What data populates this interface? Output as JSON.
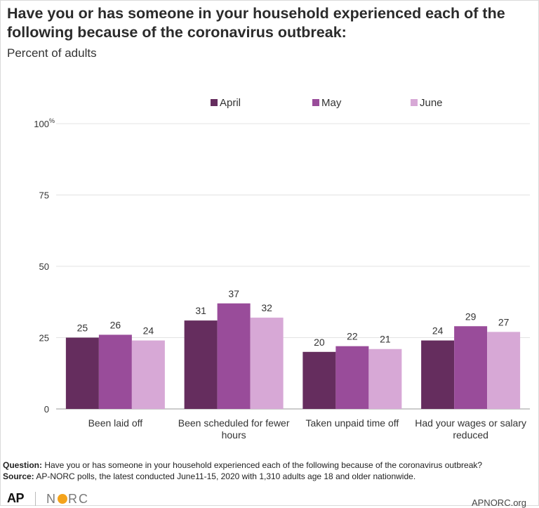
{
  "title": "Have you or has someone in your household experienced each of the following because of the coronavirus outbreak:",
  "subtitle": "Percent of adults",
  "chart_data": {
    "type": "bar",
    "categories": [
      "Been laid off",
      "Been scheduled for fewer hours",
      "Taken unpaid time off",
      "Had your wages or salary reduced"
    ],
    "series": [
      {
        "name": "April",
        "values": [
          25,
          31,
          20,
          24
        ],
        "color": "#652d5e"
      },
      {
        "name": "May",
        "values": [
          26,
          37,
          22,
          29
        ],
        "color": "#994c9a"
      },
      {
        "name": "June",
        "values": [
          24,
          32,
          21,
          27
        ],
        "color": "#d7a8d6"
      }
    ],
    "yticks": [
      0,
      25,
      50,
      75,
      100
    ],
    "ytick_labels": [
      "0",
      "25",
      "50",
      "75",
      "100"
    ],
    "y_unit": "%",
    "ylim": [
      0,
      100
    ],
    "grid": true,
    "legend_position": "top-center",
    "data_labels": true
  },
  "footer": {
    "question_label": "Question:",
    "question_text": "Have you or has someone in your household experienced each of the following because of the coronavirus outbreak?",
    "source_label": "Source:",
    "source_text": "AP-NORC polls, the latest conducted June11-15, 2020 with 1,310 adults age 18 and older nationwide."
  },
  "branding": {
    "ap_logo": "AP",
    "norc_logo_before": "N",
    "norc_logo_after": "RC",
    "website": "APNORC.org"
  }
}
